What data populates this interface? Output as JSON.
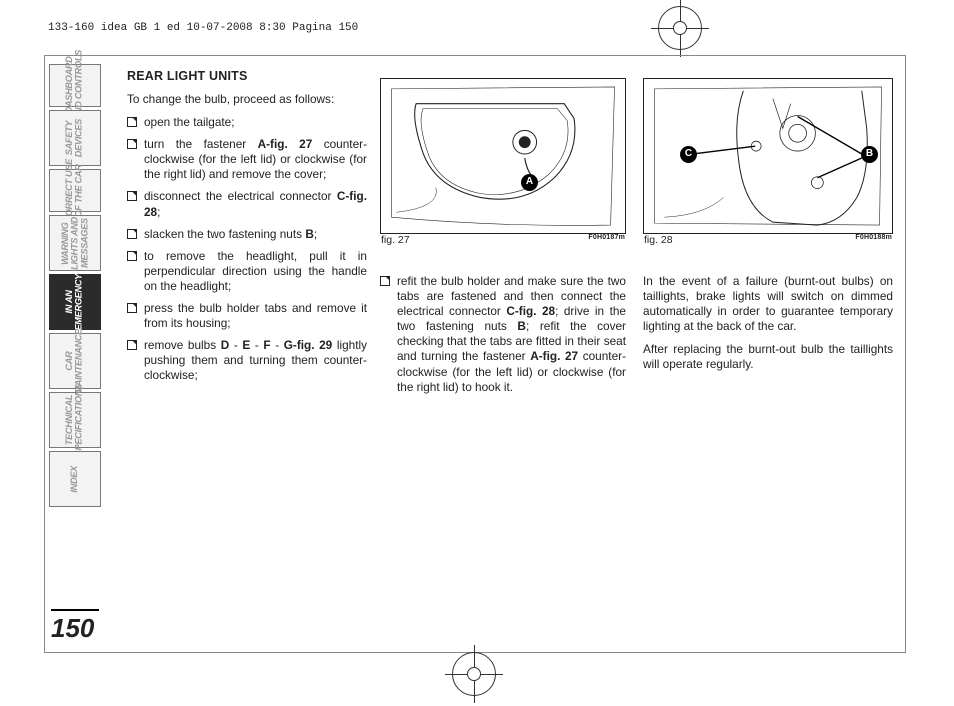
{
  "header": "133-160 idea GB 1 ed  10-07-2008  8:30  Pagina 150",
  "sidebar": [
    {
      "label": "DASHBOARD\nAND CONTROLS",
      "active": false,
      "cls": "short"
    },
    {
      "label": "SAFETY\nDEVICES",
      "active": false,
      "cls": ""
    },
    {
      "label": "CORRECT USE\nOF THE CAR",
      "active": false,
      "cls": "short"
    },
    {
      "label": "WARNING\nLIGHTS AND\nMESSAGES",
      "active": false,
      "cls": ""
    },
    {
      "label": "IN AN\nEMERGENCY",
      "active": true,
      "cls": ""
    },
    {
      "label": "CAR\nMAINTENANCE",
      "active": false,
      "cls": ""
    },
    {
      "label": "TECHNICAL\nSPECIFICATIONS",
      "active": false,
      "cls": ""
    },
    {
      "label": "INDEX",
      "active": false,
      "cls": ""
    }
  ],
  "title": "REAR LIGHT UNITS",
  "intro": "To change the bulb, proceed as follows:",
  "col3a": "In the event of a failure (burnt-out bulbs) on taillights, brake lights will switch on dimmed automatically in order to guarantee temporary lighting at the back of the car.",
  "col3b": "After replacing the burnt-out bulb the taillights will operate regularly.",
  "fig27": {
    "cap": "fig. 27",
    "code": "F0H0187m"
  },
  "fig28": {
    "cap": "fig. 28",
    "code": "F0H0188m"
  },
  "pagenum": "150"
}
